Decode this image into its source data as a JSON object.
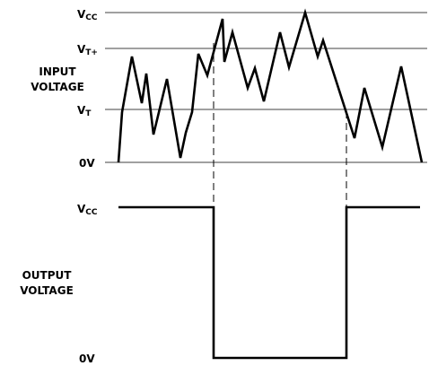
{
  "input_axis": {
    "title_line1": "INPUT",
    "title_line2": "VOLTAGE",
    "vcc": {
      "main": "V",
      "sub": "CC"
    },
    "vt_plus": {
      "main": "V",
      "sub": "T+"
    },
    "vt_minus": {
      "main": "V",
      "sub": "T"
    },
    "zero": "0V"
  },
  "output_axis": {
    "title_line1": "OUTPUT",
    "title_line2": "VOLTAGE",
    "vcc": {
      "main": "V",
      "sub": "CC"
    },
    "zero": "0V"
  }
}
